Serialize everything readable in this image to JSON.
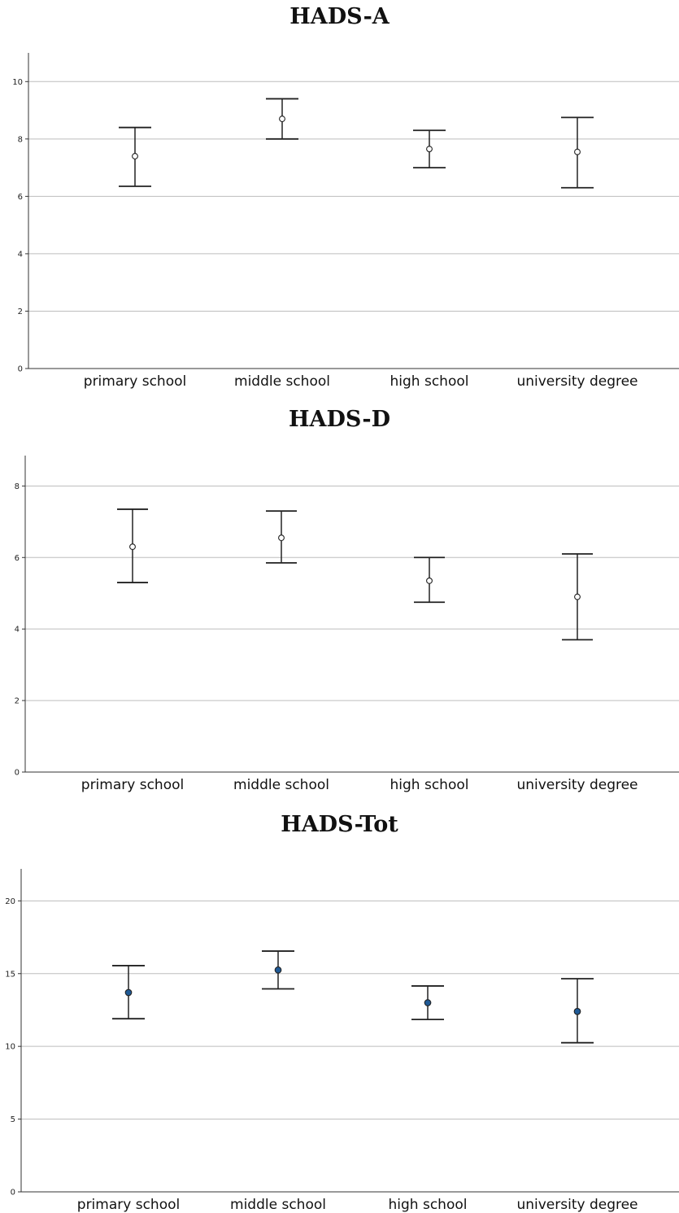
{
  "chart_data": [
    {
      "type": "errorbar",
      "title": "HADS-A",
      "categories": [
        "primary school",
        "middle school",
        "high school",
        "university degree"
      ],
      "means": [
        7.4,
        8.7,
        7.65,
        7.55
      ],
      "lower": [
        6.35,
        8.0,
        7.0,
        6.3
      ],
      "upper": [
        8.4,
        9.4,
        8.3,
        8.75
      ],
      "ylim": [
        0,
        11
      ],
      "yticks": [
        "0",
        "2",
        "4",
        "6",
        "8",
        "10"
      ],
      "grid": true,
      "marker": "hollow circle"
    },
    {
      "type": "errorbar",
      "title": "HADS-D",
      "categories": [
        "primary school",
        "middle school",
        "high school",
        "university degree"
      ],
      "means": [
        6.3,
        6.55,
        5.35,
        4.9
      ],
      "lower": [
        5.3,
        5.85,
        4.75,
        3.7
      ],
      "upper": [
        7.35,
        7.3,
        6.0,
        6.1
      ],
      "ylim": [
        0,
        8.85
      ],
      "yticks": [
        "0",
        "2",
        "4",
        "6",
        "8"
      ],
      "grid": true,
      "marker": "hollow circle"
    },
    {
      "type": "errorbar",
      "title": "HADS-Tot",
      "categories": [
        "primary school",
        "middle school",
        "high school",
        "university degree"
      ],
      "means": [
        13.7,
        15.25,
        13.0,
        12.4
      ],
      "lower": [
        11.9,
        13.95,
        11.85,
        10.25
      ],
      "upper": [
        15.55,
        16.55,
        14.15,
        14.65
      ],
      "ylim": [
        0,
        22.2
      ],
      "yticks": [
        "0",
        "5",
        "10",
        "15",
        "20"
      ],
      "grid": true,
      "marker": "filled circle",
      "marker_color": "#1f5a96"
    }
  ]
}
